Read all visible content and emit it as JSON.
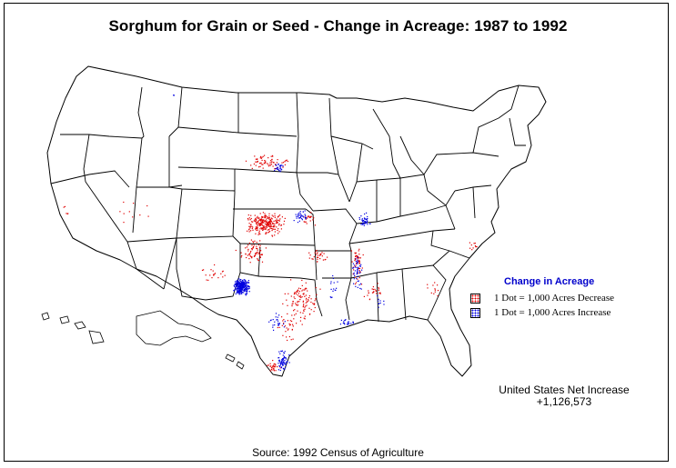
{
  "title": "Sorghum for Grain or Seed - Change in Acreage:  1987 to 1992",
  "legend": {
    "title": "Change in Acreage",
    "title_color": "#0000cc",
    "items": [
      {
        "label": "1 Dot = 1,000 Acres  Decrease",
        "color": "#e00000"
      },
      {
        "label": "1 Dot = 1,000 Acres Increase",
        "color": "#0000e0"
      }
    ]
  },
  "net_change": {
    "label": "United States Net Increase",
    "value": "+1,126,573"
  },
  "source": "Source:  1992 Census of Agriculture",
  "colors": {
    "decrease": "#e00000",
    "increase": "#0000e0",
    "boundary": "#000000"
  }
}
